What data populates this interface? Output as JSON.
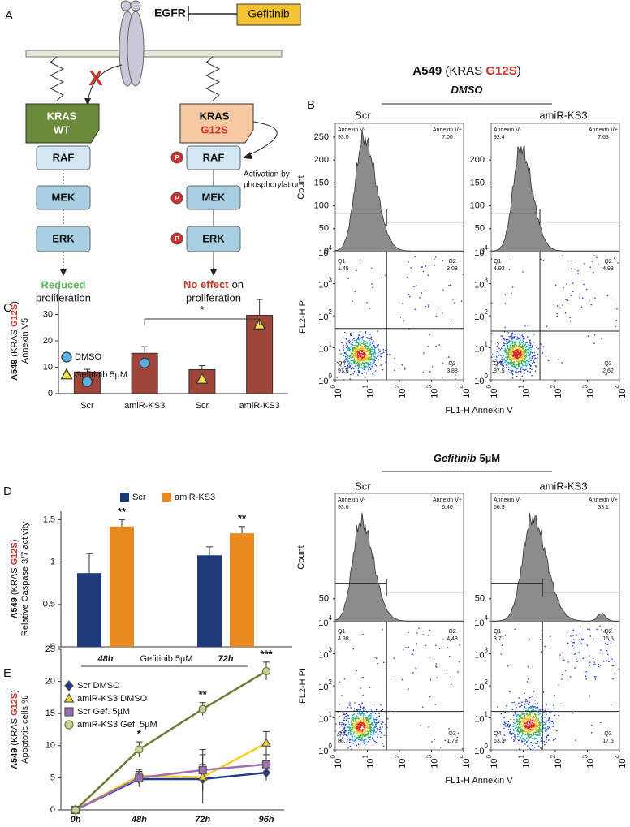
{
  "panel_a": {
    "label": "A",
    "receptor": "EGFR",
    "drug": "Gefitinib",
    "blocked": "X",
    "wt": {
      "kras": "KRAS",
      "variant": "WT",
      "cascade": [
        "RAF",
        "MEK",
        "ERK"
      ],
      "outcome": "Reduced",
      "outcome_rest": "proliferation"
    },
    "mutant": {
      "kras": "KRAS",
      "variant": "G12S",
      "cascade": [
        "RAF",
        "MEK",
        "ERK"
      ],
      "phospho": "P",
      "activation": [
        "Activation by",
        "phosphorylation"
      ],
      "outcome": "No effect",
      "outcome_rest": [
        "on",
        "proliferation"
      ]
    }
  },
  "panel_b": {
    "label": "B",
    "title": [
      "A549",
      " (KRAS ",
      "G12S",
      ")"
    ],
    "x_axis_label": "FL1-H Annexin V",
    "count_label": "Count",
    "pi_label": "FL2-H PI",
    "log_base": "10",
    "log_exponents": [
      0,
      1,
      2,
      3,
      4
    ],
    "hist_ylim": [
      0,
      280
    ],
    "annexin_neg": "Annexin V-",
    "annexin_pos": "Annexin V+",
    "quadrant_names": [
      "Q1",
      "Q2",
      "Q3",
      "Q4"
    ],
    "groups": [
      {
        "treatment": "DMSO",
        "plots": [
          {
            "name": "Scr",
            "hist_yticks": [
              0,
              50,
              100,
              150,
              200,
              250
            ],
            "neg_pct": "93.0",
            "pos_pct": "7.00",
            "quadrants": [
              "1.45",
              "3.08",
              "3.88",
              "91.6"
            ]
          },
          {
            "name": "amiR-KS3",
            "hist_yticks": [
              0,
              50,
              100,
              150,
              200
            ],
            "neg_pct": "92.4",
            "pos_pct": "7.63",
            "quadrants": [
              "4.93",
              "4.98",
              "2.62",
              "87.5"
            ]
          }
        ]
      },
      {
        "treatment": "Gefitinib",
        "dose": "5µM",
        "plots": [
          {
            "name": "Scr",
            "hist_yticks": [
              50
            ],
            "neg_pct": "93.6",
            "pos_pct": "6.40",
            "quadrants": [
              "4.98",
              "4.48",
              "1.79",
              "88.7"
            ]
          },
          {
            "name": "amiR-KS3",
            "hist_yticks": [
              50
            ],
            "neg_pct": "66.9",
            "pos_pct": "33.1",
            "quadrants": [
              "3.71",
              "15.5",
              "17.5",
              "63.3"
            ]
          }
        ]
      }
    ]
  },
  "chart_data": [
    {
      "type": "bar",
      "panel": "C",
      "y_label": [
        "A549",
        " (KRAS ",
        "G12S",
        ")"
      ],
      "y_label_2": "Annexin V5",
      "categories": [
        "Scr",
        "amiR-KS3",
        "Scr",
        "amiR-KS3"
      ],
      "values": [
        8.2,
        15.3,
        9.1,
        29.7
      ],
      "errors": [
        1,
        2.5,
        1.5,
        6
      ],
      "color": "#a0453a",
      "bar_treatment": [
        0,
        0,
        1,
        1
      ],
      "legend": [
        {
          "name": "DMSO",
          "marker": "circle",
          "color": "#5aaee0"
        },
        {
          "name": "Gefitinib 5µM",
          "marker": "triangle",
          "color": "#f5e04a"
        }
      ],
      "significance": {
        "text": "*",
        "from": 1,
        "to": 3
      },
      "ylim": [
        0,
        40
      ],
      "yticks": [
        0,
        10,
        20,
        30
      ]
    },
    {
      "type": "grouped_bar",
      "panel": "D",
      "y_label": [
        "A549",
        " (KRAS ",
        "G12S",
        ")"
      ],
      "y_label_2": "Relative Caspase 3/7 activity",
      "categories": [
        "48h",
        "72h"
      ],
      "x_label": "Gefitinib 5µM",
      "series": [
        {
          "name": "Scr",
          "color": "#1f3a7a",
          "values": [
            0.87,
            1.08
          ],
          "errors": [
            0.23,
            0.1
          ]
        },
        {
          "name": "amiR-KS3",
          "color": "#e8891f",
          "values": [
            1.42,
            1.34
          ],
          "errors": [
            0.08,
            0.08
          ],
          "significance": [
            "**",
            "**"
          ]
        }
      ],
      "ylim": [
        0,
        1.6
      ],
      "yticks": [
        0,
        0.5,
        1,
        1.5
      ]
    },
    {
      "type": "line",
      "panel": "E",
      "y_label": [
        "A549",
        " (KRAS ",
        "G12S",
        ")"
      ],
      "y_label_2": "Apoptotic cells %",
      "categories": [
        "0h",
        "48h",
        "72h",
        "96h"
      ],
      "series": [
        {
          "name": "Scr DMSO",
          "color": "#1f3a8a",
          "marker": "diamond",
          "values": [
            0,
            4.8,
            4.8,
            5.8
          ],
          "errors": [
            0,
            1.2,
            3.8,
            1.2
          ]
        },
        {
          "name": "amiR-KS3 DMSO",
          "color": "#f5d020",
          "marker": "triangle",
          "values": [
            0,
            5.3,
            5.1,
            10.4
          ],
          "errors": [
            0,
            1,
            2,
            1.8
          ]
        },
        {
          "name": "Scr Gef. 5µM",
          "color": "#9b6fb0",
          "marker": "square",
          "values": [
            0,
            5,
            6.2,
            7.1
          ],
          "errors": [
            0,
            0.8,
            3.2,
            1.5
          ]
        },
        {
          "name": "amiR-KS3 Gef. 5µM",
          "color": "#6b7a35",
          "marker": "circle",
          "values": [
            0,
            9.4,
            15.7,
            21.6
          ],
          "errors": [
            0,
            1.2,
            1,
            1.4
          ],
          "significance": [
            null,
            "*",
            "**",
            "***"
          ]
        }
      ],
      "ylim": [
        0,
        25
      ],
      "yticks": [
        0,
        5,
        10,
        15,
        20,
        25
      ]
    }
  ]
}
